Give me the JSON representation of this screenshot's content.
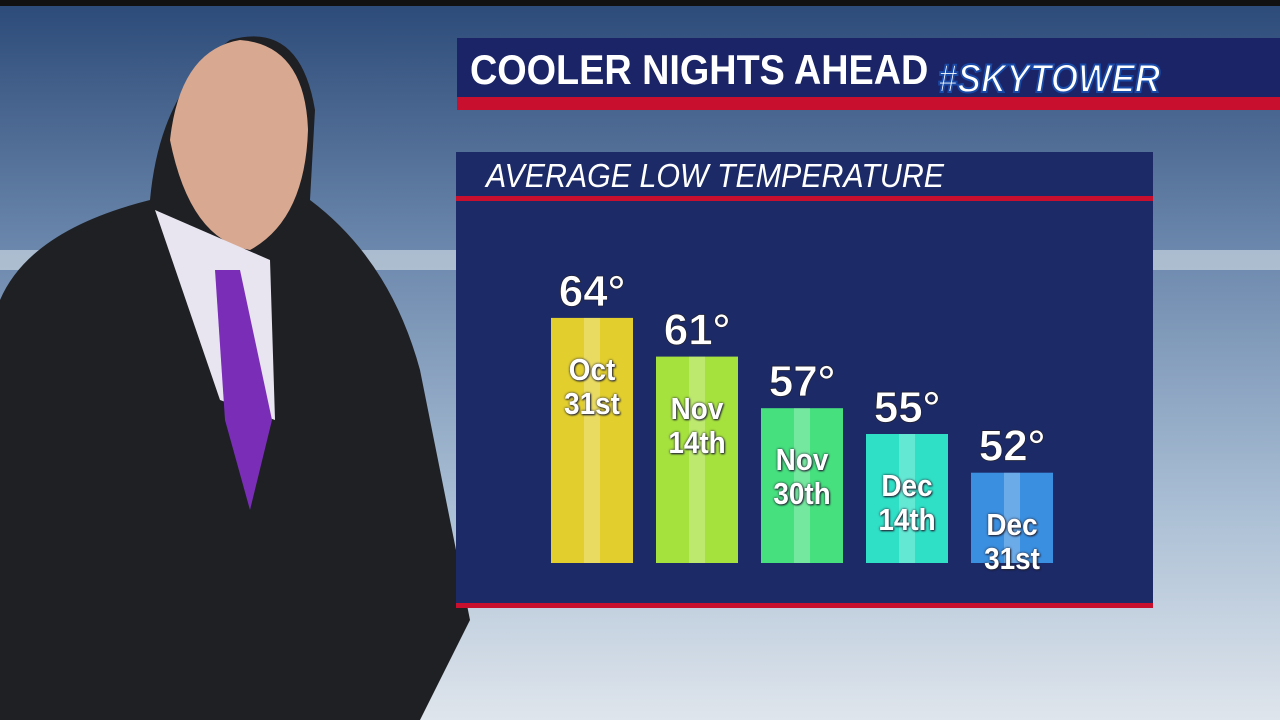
{
  "chart_data": {
    "type": "bar",
    "title": "COOLER NIGHTS AHEAD",
    "brand": "#SKYTOWER",
    "subtitle": "AVERAGE LOW TEMPERATURE",
    "categories": [
      "Oct 31st",
      "Nov 14th",
      "Nov 30th",
      "Dec 14th",
      "Dec 31st"
    ],
    "values": [
      64,
      61,
      57,
      55,
      52
    ],
    "value_labels": [
      "64°",
      "61°",
      "57°",
      "55°",
      "52°"
    ],
    "colors": [
      "#e2cf2e",
      "#a6e23e",
      "#46e07e",
      "#2fe0c6",
      "#3a8fe0"
    ],
    "ylim": [
      45,
      65
    ]
  }
}
